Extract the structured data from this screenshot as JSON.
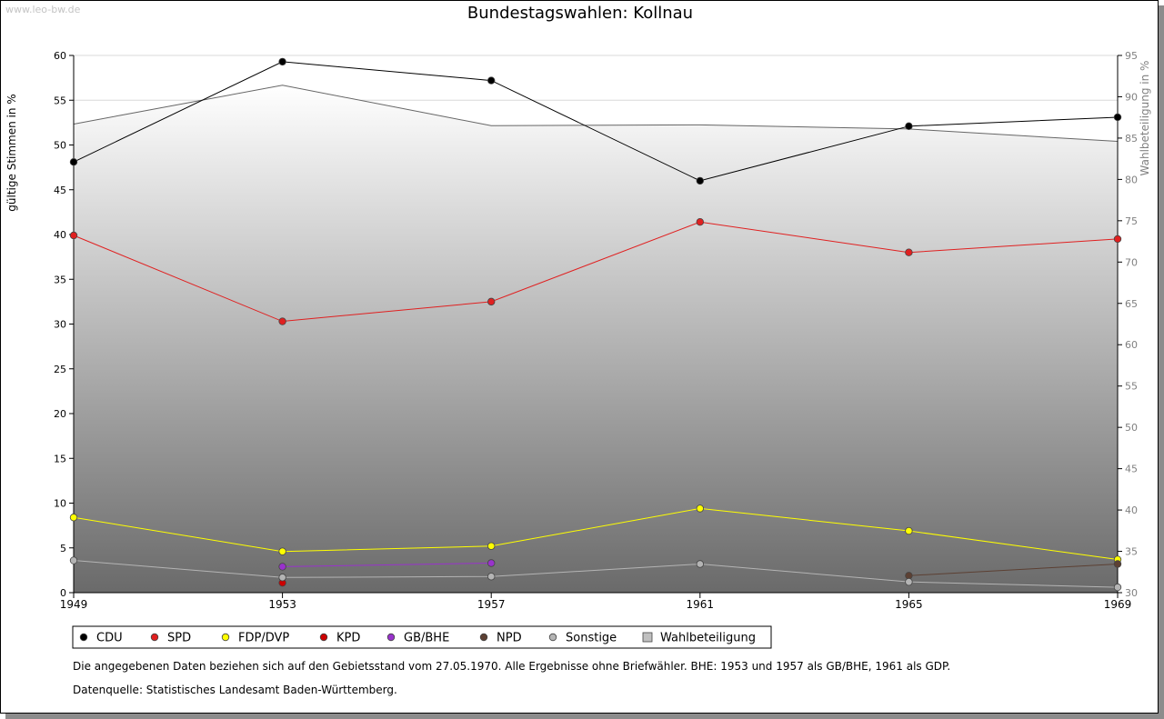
{
  "watermark": "www.leo-bw.de",
  "chart_data": {
    "type": "line",
    "title": "Bundestagswahlen: Kollnau",
    "ylabel": "gültige Stimmen in %",
    "y2label": "Wahlbeteiligung in %",
    "xlabel": "",
    "x": [
      1949,
      1953,
      1957,
      1961,
      1965,
      1969
    ],
    "x_ticks": [
      "1949",
      "1953",
      "1957",
      "1961",
      "1965",
      "1969"
    ],
    "ylim": [
      0,
      60
    ],
    "y_ticks": [
      "0",
      "5",
      "10",
      "15",
      "20",
      "25",
      "30",
      "35",
      "40",
      "45",
      "50",
      "55",
      "60"
    ],
    "y2lim": [
      30,
      95
    ],
    "y2_ticks": [
      "30",
      "35",
      "40",
      "45",
      "50",
      "55",
      "60",
      "65",
      "70",
      "75",
      "80",
      "85",
      "90",
      "95"
    ],
    "grid": true,
    "legend_position": "bottom",
    "turnout": {
      "name": "Wahlbeteiligung",
      "values": [
        86.7,
        91.4,
        86.5,
        86.6,
        86.1,
        84.6
      ],
      "color": "#666666"
    },
    "series": [
      {
        "name": "CDU",
        "color": "#000000",
        "values": [
          48.1,
          59.3,
          57.2,
          46.0,
          52.1,
          53.1
        ]
      },
      {
        "name": "SPD",
        "color": "#e02020",
        "values": [
          39.9,
          30.3,
          32.5,
          41.4,
          38.0,
          39.5
        ]
      },
      {
        "name": "FDP/DVP",
        "color": "#ffff00",
        "values": [
          8.4,
          4.6,
          5.2,
          9.4,
          6.9,
          3.7
        ]
      },
      {
        "name": "KPD",
        "color": "#cc0000",
        "values": [
          null,
          1.1,
          null,
          null,
          null,
          null
        ]
      },
      {
        "name": "GB/BHE",
        "color": "#9932cc",
        "values": [
          null,
          2.9,
          3.3,
          null,
          null,
          null
        ]
      },
      {
        "name": "NPD",
        "color": "#5c4033",
        "values": [
          null,
          null,
          null,
          null,
          1.9,
          3.2
        ]
      },
      {
        "name": "Sonstige",
        "color": "#b4b4b4",
        "values": [
          3.6,
          1.7,
          1.8,
          3.2,
          1.2,
          0.6
        ]
      }
    ]
  },
  "notes": {
    "line1": "Die angegebenen Daten beziehen sich auf den Gebietsstand vom 27.05.1970. Alle Ergebnisse ohne Briefwähler. BHE: 1953 und 1957 als GB/BHE, 1961 als GDP.",
    "line2": "Datenquelle: Statistisches Landesamt Baden-Württemberg."
  }
}
